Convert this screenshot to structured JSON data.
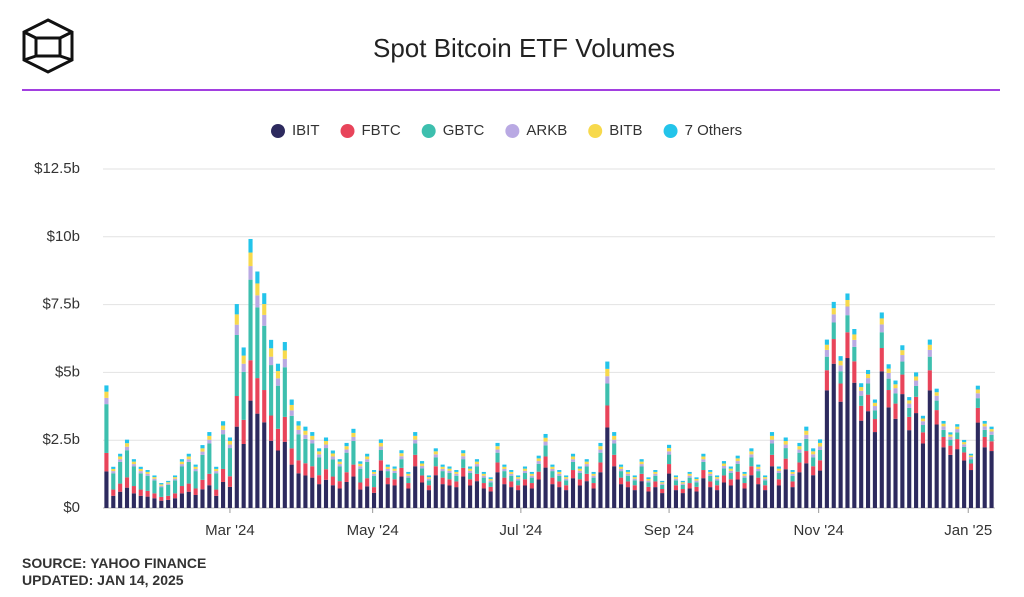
{
  "chart_data": {
    "type": "stacked_bar",
    "title": "Spot Bitcoin ETF Volumes",
    "source": "SOURCE: YAHOO FINANCE",
    "updated": "UPDATED: JAN 14, 2025",
    "xlim": [
      0,
      130
    ],
    "xticks": [
      {
        "value": 18.5,
        "label": "Mar '24"
      },
      {
        "value": 39.3,
        "label": "May '24"
      },
      {
        "value": 60.9,
        "label": "Jul '24"
      },
      {
        "value": 82.5,
        "label": "Sep '24"
      },
      {
        "value": 104.3,
        "label": "Nov '24"
      },
      {
        "value": 126.1,
        "label": "Jan '25"
      }
    ],
    "ylim": [
      0,
      12.5
    ],
    "yticks": [
      {
        "value": 0,
        "label": "$0"
      },
      {
        "value": 2.5,
        "label": "$2.5b"
      },
      {
        "value": 5,
        "label": "$5b"
      },
      {
        "value": 7.5,
        "label": "$7.5b"
      },
      {
        "value": 10,
        "label": "$10b"
      },
      {
        "value": 12.5,
        "label": "$12.5b"
      }
    ],
    "grid": true,
    "series": [
      {
        "name": "IBIT",
        "color": "#2d2a5e",
        "values": [
          1.35,
          0.45,
          0.6,
          0.75,
          0.54,
          0.45,
          0.42,
          0.36,
          0.27,
          0.3,
          0.36,
          0.54,
          0.6,
          0.48,
          0.69,
          0.84,
          0.45,
          0.96,
          0.78,
          3.0,
          2.36,
          3.96,
          3.48,
          3.16,
          2.48,
          2.12,
          2.44,
          1.6,
          1.28,
          1.2,
          1.12,
          0.88,
          1.04,
          0.84,
          0.72,
          0.96,
          1.16,
          0.68,
          0.8,
          0.56,
          1.38,
          0.88,
          0.83,
          1.16,
          0.72,
          1.54,
          0.94,
          0.66,
          1.21,
          0.88,
          0.83,
          0.77,
          1.16,
          0.83,
          0.99,
          0.72,
          0.61,
          1.32,
          0.88,
          0.77,
          0.66,
          0.83,
          0.72,
          1.05,
          1.49,
          0.88,
          0.77,
          0.66,
          1.1,
          0.83,
          0.99,
          0.72,
          1.32,
          2.97,
          1.54,
          0.88,
          0.77,
          0.66,
          0.99,
          0.61,
          0.77,
          0.55,
          1.27,
          0.66,
          0.55,
          0.72,
          0.61,
          1.1,
          0.77,
          0.66,
          0.94,
          0.83,
          1.05,
          0.72,
          1.21,
          0.88,
          0.66,
          1.54,
          0.83,
          1.43,
          0.77,
          1.32,
          1.65,
          1.21,
          1.38,
          4.34,
          5.32,
          3.92,
          5.53,
          4.62,
          3.22,
          3.57,
          2.8,
          5.04,
          3.71,
          3.29,
          4.2,
          2.87,
          3.5,
          2.38,
          4.34,
          3.08,
          2.24,
          1.96,
          2.17,
          1.75,
          1.4,
          3.15,
          2.24,
          2.1
        ]
      },
      {
        "name": "FBTC",
        "color": "#e8445a",
        "values": [
          0.68,
          0.23,
          0.3,
          0.38,
          0.27,
          0.23,
          0.21,
          0.18,
          0.14,
          0.15,
          0.18,
          0.27,
          0.3,
          0.24,
          0.35,
          0.42,
          0.23,
          0.48,
          0.39,
          1.13,
          0.89,
          1.49,
          1.31,
          1.19,
          0.93,
          0.8,
          0.92,
          0.6,
          0.48,
          0.45,
          0.42,
          0.33,
          0.39,
          0.32,
          0.27,
          0.36,
          0.44,
          0.26,
          0.3,
          0.21,
          0.38,
          0.24,
          0.23,
          0.32,
          0.2,
          0.42,
          0.26,
          0.18,
          0.33,
          0.24,
          0.23,
          0.21,
          0.32,
          0.23,
          0.27,
          0.2,
          0.17,
          0.36,
          0.24,
          0.21,
          0.18,
          0.23,
          0.2,
          0.29,
          0.41,
          0.24,
          0.21,
          0.18,
          0.3,
          0.23,
          0.27,
          0.2,
          0.36,
          0.81,
          0.42,
          0.24,
          0.21,
          0.18,
          0.27,
          0.17,
          0.21,
          0.15,
          0.35,
          0.18,
          0.15,
          0.2,
          0.17,
          0.3,
          0.21,
          0.18,
          0.26,
          0.23,
          0.29,
          0.2,
          0.33,
          0.24,
          0.18,
          0.42,
          0.23,
          0.39,
          0.21,
          0.36,
          0.45,
          0.33,
          0.38,
          0.74,
          0.91,
          0.67,
          0.95,
          0.79,
          0.55,
          0.61,
          0.48,
          0.86,
          0.64,
          0.56,
          0.72,
          0.49,
          0.6,
          0.41,
          0.74,
          0.53,
          0.38,
          0.34,
          0.37,
          0.3,
          0.24,
          0.54,
          0.38,
          0.36
        ]
      },
      {
        "name": "GBTC",
        "color": "#3dbfae",
        "values": [
          1.8,
          0.6,
          0.8,
          1.0,
          0.72,
          0.6,
          0.56,
          0.48,
          0.36,
          0.4,
          0.48,
          0.72,
          0.8,
          0.64,
          0.92,
          1.12,
          0.6,
          1.28,
          1.04,
          2.25,
          1.77,
          2.97,
          2.61,
          2.37,
          1.86,
          1.59,
          1.83,
          1.2,
          0.96,
          0.9,
          0.84,
          0.66,
          0.78,
          0.63,
          0.54,
          0.72,
          0.87,
          0.51,
          0.6,
          0.42,
          0.38,
          0.24,
          0.23,
          0.32,
          0.2,
          0.42,
          0.26,
          0.18,
          0.33,
          0.24,
          0.23,
          0.21,
          0.32,
          0.23,
          0.27,
          0.2,
          0.17,
          0.36,
          0.24,
          0.21,
          0.18,
          0.23,
          0.2,
          0.29,
          0.41,
          0.24,
          0.21,
          0.18,
          0.3,
          0.23,
          0.27,
          0.2,
          0.36,
          0.81,
          0.42,
          0.24,
          0.21,
          0.18,
          0.27,
          0.17,
          0.21,
          0.15,
          0.35,
          0.18,
          0.15,
          0.2,
          0.17,
          0.3,
          0.21,
          0.18,
          0.26,
          0.23,
          0.29,
          0.2,
          0.33,
          0.24,
          0.18,
          0.42,
          0.23,
          0.39,
          0.21,
          0.36,
          0.45,
          0.33,
          0.38,
          0.5,
          0.61,
          0.45,
          0.63,
          0.53,
          0.37,
          0.41,
          0.32,
          0.58,
          0.42,
          0.38,
          0.48,
          0.33,
          0.4,
          0.27,
          0.5,
          0.35,
          0.26,
          0.22,
          0.25,
          0.2,
          0.16,
          0.36,
          0.26,
          0.24
        ]
      },
      {
        "name": "ARKB",
        "color": "#b9a9e3",
        "values": [
          0.23,
          0.08,
          0.1,
          0.13,
          0.09,
          0.08,
          0.07,
          0.06,
          0.05,
          0.05,
          0.06,
          0.09,
          0.1,
          0.08,
          0.12,
          0.14,
          0.08,
          0.16,
          0.13,
          0.38,
          0.3,
          0.5,
          0.44,
          0.4,
          0.31,
          0.27,
          0.31,
          0.2,
          0.16,
          0.15,
          0.14,
          0.11,
          0.13,
          0.11,
          0.09,
          0.12,
          0.15,
          0.09,
          0.1,
          0.07,
          0.13,
          0.08,
          0.08,
          0.11,
          0.07,
          0.14,
          0.09,
          0.06,
          0.11,
          0.08,
          0.08,
          0.07,
          0.11,
          0.08,
          0.09,
          0.07,
          0.06,
          0.12,
          0.08,
          0.07,
          0.06,
          0.08,
          0.07,
          0.1,
          0.14,
          0.08,
          0.07,
          0.06,
          0.1,
          0.08,
          0.09,
          0.07,
          0.12,
          0.27,
          0.14,
          0.08,
          0.07,
          0.06,
          0.09,
          0.06,
          0.07,
          0.05,
          0.12,
          0.06,
          0.05,
          0.07,
          0.06,
          0.1,
          0.07,
          0.06,
          0.09,
          0.08,
          0.1,
          0.07,
          0.11,
          0.08,
          0.06,
          0.14,
          0.08,
          0.13,
          0.07,
          0.12,
          0.15,
          0.11,
          0.13,
          0.25,
          0.3,
          0.22,
          0.32,
          0.26,
          0.18,
          0.2,
          0.16,
          0.29,
          0.21,
          0.19,
          0.24,
          0.16,
          0.2,
          0.14,
          0.25,
          0.18,
          0.13,
          0.11,
          0.12,
          0.1,
          0.08,
          0.18,
          0.13,
          0.12
        ]
      },
      {
        "name": "BITB",
        "color": "#f7d94c",
        "values": [
          0.23,
          0.08,
          0.1,
          0.13,
          0.09,
          0.08,
          0.07,
          0.06,
          0.05,
          0.05,
          0.06,
          0.09,
          0.1,
          0.08,
          0.12,
          0.14,
          0.08,
          0.16,
          0.13,
          0.38,
          0.3,
          0.5,
          0.44,
          0.4,
          0.31,
          0.27,
          0.31,
          0.2,
          0.16,
          0.15,
          0.14,
          0.11,
          0.13,
          0.11,
          0.09,
          0.12,
          0.15,
          0.09,
          0.1,
          0.07,
          0.13,
          0.08,
          0.08,
          0.11,
          0.07,
          0.14,
          0.09,
          0.06,
          0.11,
          0.08,
          0.08,
          0.07,
          0.11,
          0.08,
          0.09,
          0.07,
          0.06,
          0.12,
          0.08,
          0.07,
          0.06,
          0.08,
          0.07,
          0.1,
          0.14,
          0.08,
          0.07,
          0.06,
          0.1,
          0.08,
          0.09,
          0.07,
          0.12,
          0.27,
          0.14,
          0.08,
          0.07,
          0.06,
          0.09,
          0.06,
          0.07,
          0.05,
          0.12,
          0.06,
          0.05,
          0.07,
          0.06,
          0.1,
          0.07,
          0.06,
          0.09,
          0.08,
          0.1,
          0.07,
          0.11,
          0.08,
          0.06,
          0.14,
          0.08,
          0.13,
          0.07,
          0.12,
          0.15,
          0.11,
          0.13,
          0.19,
          0.23,
          0.17,
          0.24,
          0.2,
          0.14,
          0.15,
          0.12,
          0.22,
          0.16,
          0.14,
          0.18,
          0.12,
          0.15,
          0.1,
          0.19,
          0.13,
          0.1,
          0.08,
          0.09,
          0.08,
          0.06,
          0.14,
          0.1,
          0.09
        ]
      },
      {
        "name": "7 Others",
        "color": "#23c4ea",
        "values": [
          0.23,
          0.08,
          0.1,
          0.13,
          0.09,
          0.08,
          0.07,
          0.06,
          0.05,
          0.05,
          0.06,
          0.09,
          0.1,
          0.08,
          0.12,
          0.14,
          0.08,
          0.16,
          0.13,
          0.38,
          0.3,
          0.5,
          0.44,
          0.4,
          0.31,
          0.27,
          0.31,
          0.2,
          0.16,
          0.15,
          0.14,
          0.11,
          0.13,
          0.11,
          0.09,
          0.12,
          0.15,
          0.09,
          0.1,
          0.07,
          0.13,
          0.08,
          0.08,
          0.11,
          0.07,
          0.14,
          0.09,
          0.06,
          0.11,
          0.08,
          0.08,
          0.07,
          0.11,
          0.08,
          0.09,
          0.07,
          0.06,
          0.12,
          0.08,
          0.07,
          0.06,
          0.08,
          0.07,
          0.1,
          0.14,
          0.08,
          0.07,
          0.06,
          0.1,
          0.08,
          0.09,
          0.07,
          0.12,
          0.27,
          0.14,
          0.08,
          0.07,
          0.06,
          0.09,
          0.06,
          0.07,
          0.05,
          0.12,
          0.06,
          0.05,
          0.07,
          0.06,
          0.1,
          0.07,
          0.06,
          0.09,
          0.08,
          0.1,
          0.07,
          0.11,
          0.08,
          0.06,
          0.14,
          0.08,
          0.13,
          0.07,
          0.12,
          0.15,
          0.11,
          0.13,
          0.19,
          0.23,
          0.17,
          0.24,
          0.2,
          0.14,
          0.15,
          0.12,
          0.22,
          0.16,
          0.14,
          0.18,
          0.12,
          0.15,
          0.1,
          0.19,
          0.13,
          0.1,
          0.08,
          0.09,
          0.08,
          0.06,
          0.14,
          0.1,
          0.09
        ]
      }
    ]
  }
}
